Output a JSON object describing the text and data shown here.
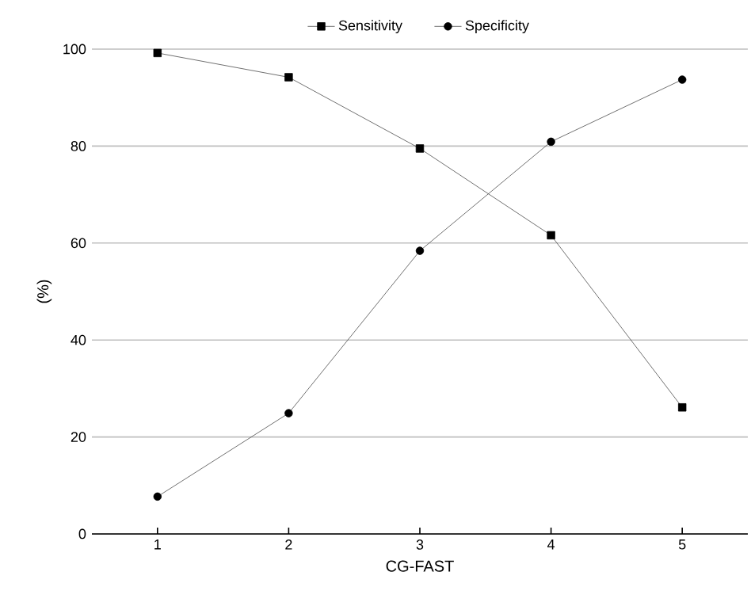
{
  "chart_data": {
    "type": "line",
    "xlabel": "CG-FAST",
    "ylabel": "(%)",
    "x": [
      1,
      2,
      3,
      4,
      5
    ],
    "xlim": [
      0.5,
      5.5
    ],
    "xticks": [
      1,
      2,
      3,
      4,
      5
    ],
    "ylim": [
      0,
      100
    ],
    "yticks": [
      0,
      20,
      40,
      60,
      80,
      100
    ],
    "grid": "y",
    "legend": "top",
    "line_style": "solid",
    "series": [
      {
        "name": "Sensitivity",
        "color": "#000000",
        "marker": "square",
        "values": [
          99.2,
          94.2,
          79.5,
          61.6,
          26.1
        ]
      },
      {
        "name": "Specificity",
        "color": "#000000",
        "marker": "circle",
        "values": [
          7.7,
          24.9,
          58.4,
          80.9,
          93.7
        ]
      }
    ]
  }
}
